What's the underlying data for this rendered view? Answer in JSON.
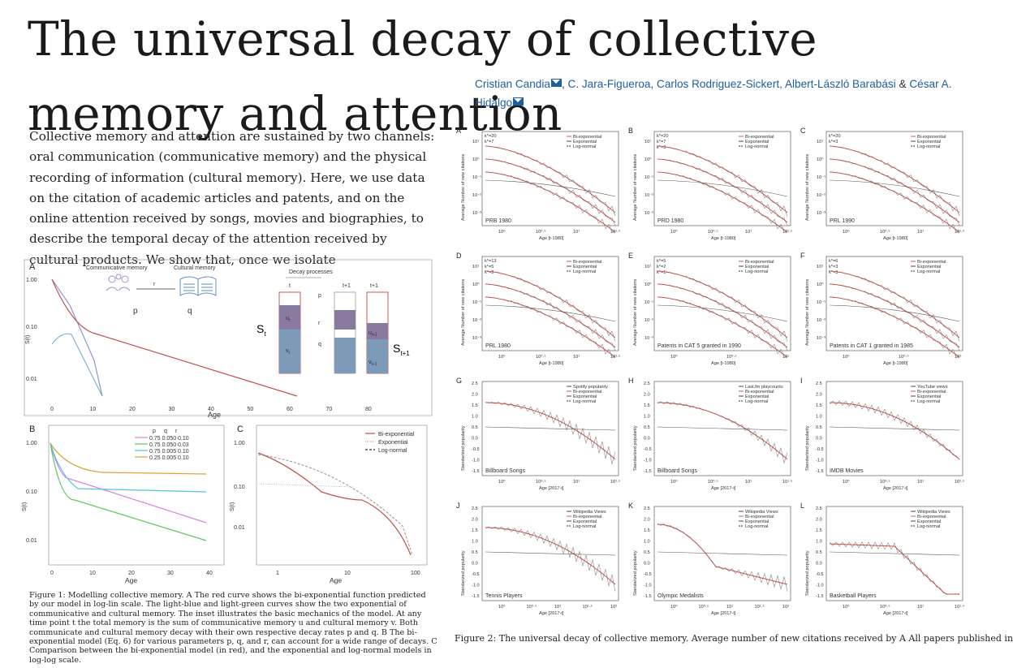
{
  "title": "The universal decay of collective memory and attention",
  "abstract": "Collective memory and attention are sustained by two channels: oral communication (communicative memory) and the physical recording of information (cultural memory). Here, we use data on the citation of academic articles and patents, and on the online attention received by songs, movies and biographies, to describe the temporal decay of the attention received by cultural products. We show that, once we isolate",
  "authors": {
    "a1": "Cristian Candia",
    "rest": "C. Jara-Figueroa, Carlos Rodriguez-Sickert, Albert-László Barabási",
    "amp": "&",
    "last": "César A. Hidalgo",
    "sep": ","
  },
  "figure1": {
    "panelA": {
      "label": "A",
      "communicative": "Communicative memory",
      "cultural": "Cultural memory",
      "decay": "Decay processes",
      "t": "t",
      "t1": "t+1",
      "t2": "t+1",
      "p": "p",
      "q": "q",
      "r": "r",
      "u": "u",
      "ut_sub": "t",
      "v": "v",
      "vt_sub": "t",
      "ut1": "u",
      "ut1_sub": "t+1",
      "vt1": "v",
      "vt1_sub": "t+1",
      "St": "S",
      "St_sub": "t",
      "St1": "S",
      "St1_sub": "t+1",
      "ylabel": "S(t)",
      "xlabel": "Age",
      "yticks": [
        "1.00",
        "0.10",
        "0.01"
      ],
      "xticks": [
        "0",
        "10",
        "20",
        "30",
        "40",
        "50",
        "60",
        "70",
        "80"
      ]
    },
    "panelB": {
      "label": "B",
      "ylabel": "S(t)",
      "xlabel": "Age",
      "yticks": [
        "1.00",
        "0.10",
        "0.01"
      ],
      "xticks": [
        "0",
        "10",
        "20",
        "30",
        "40"
      ],
      "legend_head": [
        "p",
        "q",
        "r"
      ],
      "legend_rows": [
        "0.75 0.050 0.10",
        "0.75 0.050 0.03",
        "0.75 0.005 0.10",
        "0.25 0.005 0.10"
      ],
      "colors": [
        "#d77fe0",
        "#5cc860",
        "#55c2dc",
        "#e0a23a"
      ]
    },
    "panelC": {
      "label": "C",
      "ylabel": "S(t)",
      "xlabel": "Age",
      "yticks": [
        "1.00",
        "0.10",
        "0.01"
      ],
      "xticks": [
        "1",
        "10",
        "100"
      ],
      "legend": [
        "Bi-exponential",
        "Exponential",
        "Log-normal"
      ]
    },
    "caption": "Figure 1: Modelling collective memory. A The red curve shows the bi-exponential function predicted by our model in log-lin scale. The light-blue and light-green curves show the two exponential of communicative and cultural memory. The inset illustrates the basic mechanics of the model. At any time point t the total memory is the sum of communicative memory u and cultural memory v. Both communicate and cultural memory decay with their own respective decay rates p and q. B The bi-exponential model (Eq. 6) for various parameters p, q, and r, can account for a wide range of decays. C Comparison between the bi-exponential model (in red), and the exponential and log-normal models in log-log scale."
  },
  "figure2": {
    "caption": "Figure 2: The universal decay of collective memory. Average number of new citations received by A All papers published in",
    "legend3": [
      "Bi-exponential",
      "Exponential",
      "Log-normal"
    ],
    "ylabel_cit": "Average Number of new citations",
    "ylabel_pop": "Standarized popularity",
    "xlabel_cit": "Age [t-1980]",
    "xlabel_pop": "Age [2017-t]",
    "panels": [
      {
        "label": "A",
        "name": "PRB 1980",
        "k": [
          "k*=20",
          "k*=7"
        ],
        "xt": [
          "10⁰",
          "10⁰·⁵",
          "10¹",
          "10¹·⁵"
        ],
        "xlabel": "Age [t-1980]"
      },
      {
        "label": "B",
        "name": "PRD 1980",
        "k": [
          "k*=20",
          "k*=7",
          "k*=3"
        ],
        "xt": [
          "10⁰",
          "10⁰·⁵",
          "10¹",
          "10¹·⁵"
        ],
        "xlabel": "Age [t-1980]"
      },
      {
        "label": "C",
        "name": "PRL 1990",
        "k": [
          "k*=20",
          "k*=3"
        ],
        "xt": [
          "10⁰",
          "10⁰·⁵",
          "10¹",
          "10¹·⁵"
        ],
        "xlabel": "Age [t-1980]"
      },
      {
        "label": "D",
        "name": "PRL 1980",
        "k": [
          "k*=13",
          "k*=5",
          "k*=2"
        ],
        "xt": [
          "10⁰",
          "10⁰·⁵",
          "10¹",
          "10¹·⁵"
        ],
        "xlabel": "Age [t-1980]"
      },
      {
        "label": "E",
        "name": "Patents in CAT 5 granted in 1990",
        "k": [
          "k*=5",
          "k*=2",
          "k*=1"
        ],
        "xt": [
          "10⁰",
          "10⁰·⁵",
          "10¹"
        ],
        "xlabel": "Age [t-1980]"
      },
      {
        "label": "F",
        "name": "Patents in CAT 1 granted in 1985",
        "k": [
          "k*=6",
          "k*=3",
          "k*=3"
        ],
        "xt": [
          "10⁰",
          "10⁰·⁵",
          "10¹"
        ],
        "xlabel": "Age [t-1980]"
      },
      {
        "label": "G",
        "name": "Billboard Songs",
        "src": "Spotify popularity",
        "xt": [
          "10⁰",
          "10⁰·⁵",
          "10¹",
          "10¹·⁵"
        ],
        "xlabel": "Age [2017-t]"
      },
      {
        "label": "H",
        "name": "Billboard Songs",
        "src": "Last.fm playcounts",
        "xt": [
          "10⁰",
          "10⁰·⁵",
          "10¹",
          "10¹·⁵"
        ],
        "xlabel": "Age [2017-t]"
      },
      {
        "label": "I",
        "name": "IMDB Movies",
        "src": "YouTube views",
        "xt": [
          "10⁰",
          "10⁰·⁵",
          "10¹",
          "10¹·⁵"
        ],
        "xlabel": "Age [2017-t]"
      },
      {
        "label": "J",
        "name": "Tennis Players",
        "src": "Wikipedia Views",
        "xt": [
          "10⁰",
          "10⁰·⁵",
          "10¹",
          "10¹·⁵",
          "10²"
        ],
        "xlabel": "Age [2017-t]"
      },
      {
        "label": "K",
        "name": "Olympic Medalists",
        "src": "Wikipedia Views",
        "xt": [
          "10⁰",
          "10⁰·⁵",
          "10¹",
          "10¹·⁵",
          "10²"
        ],
        "xlabel": "Age [2017-t]"
      },
      {
        "label": "L",
        "name": "Basketball Players",
        "src": "Wikipedia Views",
        "xt": [
          "10⁰",
          "10⁰·⁵",
          "10¹",
          "10¹·⁵"
        ],
        "xlabel": "Age [2017-t]"
      }
    ],
    "pop_yticks": [
      "2.5",
      "2.0",
      "1.5",
      "1.0",
      "0.5",
      "0.0",
      "-0.5",
      "-1.0",
      "-1.5"
    ]
  }
}
